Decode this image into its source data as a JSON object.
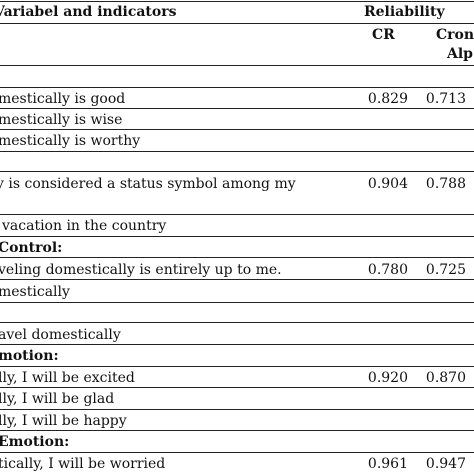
{
  "header": {
    "title": "Variabel and indicators",
    "reliability": "Reliability",
    "cr": "CR",
    "cronbach_line1": "Cronb",
    "cronbach_line2": "Alp"
  },
  "rows": [
    {
      "text": "mestically is good",
      "cr": "0.829",
      "alpha": "0.713"
    },
    {
      "text": "mestically is wise"
    },
    {
      "text": "mestically is worthy"
    },
    {
      "text": "y is considered a status symbol among my",
      "cr": "0.904",
      "alpha": "0.788"
    },
    {
      "text": "vacation in the country"
    },
    {
      "text": "Control:",
      "bold": true
    },
    {
      "text": "veling domestically is entirely up to me.",
      "cr": "0.780",
      "alpha": "0.725"
    },
    {
      "text": "mestically"
    },
    {
      "text": "avel domestically"
    },
    {
      "text": "motion:",
      "bold": true
    },
    {
      "text": "lly, I will be excited",
      "cr": "0.920",
      "alpha": "0.870"
    },
    {
      "text": "lly, I will be glad"
    },
    {
      "text": "lly, I will be happy"
    },
    {
      "text": "Emotion:",
      "bold": true
    },
    {
      "text": "tically, I will be worried",
      "cr": "0.961",
      "alpha": "0.947"
    }
  ]
}
